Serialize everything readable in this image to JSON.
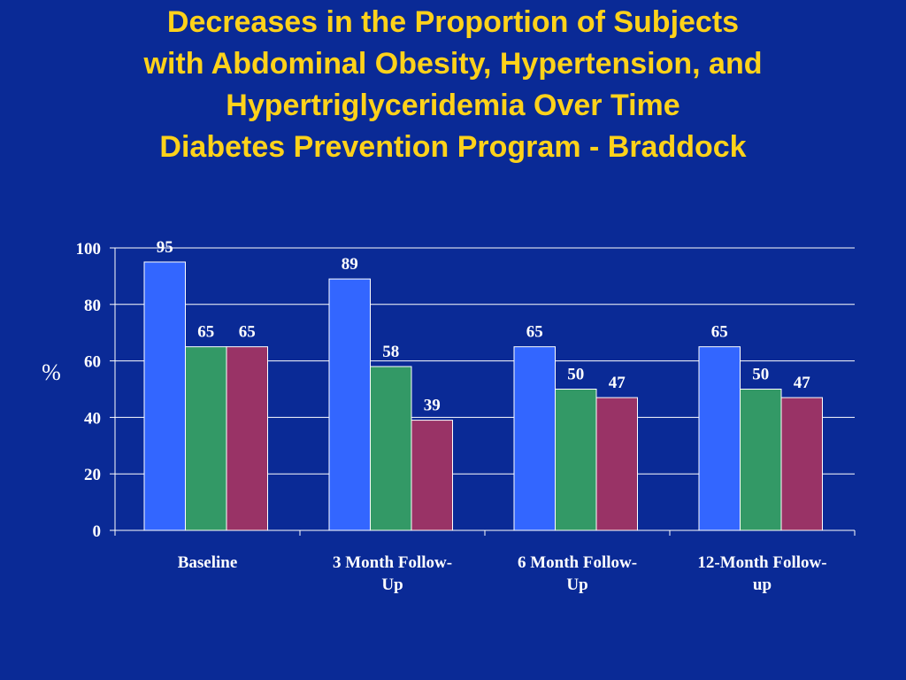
{
  "title_lines": [
    "Decreases in the Proportion of Subjects",
    "with Abdominal Obesity, Hypertension, and",
    "Hypertriglyceridemia Over Time",
    "Diabetes Prevention Program - Braddock"
  ],
  "colors": {
    "background": "#0a2a96",
    "title": "#ffd21a",
    "axis": "#ffffff",
    "grid": "#ffffff"
  },
  "chart_data": {
    "type": "bar",
    "ylabel": "%",
    "ylim": [
      0,
      100
    ],
    "yticks": [
      0,
      20,
      40,
      60,
      80,
      100
    ],
    "grid": true,
    "categories": [
      [
        "Baseline"
      ],
      [
        "3 Month Follow-",
        "Up"
      ],
      [
        "6 Month Follow-",
        "Up"
      ],
      [
        "12-Month Follow-",
        "up"
      ]
    ],
    "series": [
      {
        "values": [
          95,
          89,
          65,
          65
        ],
        "color": "#3366ff"
      },
      {
        "values": [
          65,
          58,
          50,
          50
        ],
        "color": "#339966"
      },
      {
        "values": [
          65,
          39,
          47,
          47
        ],
        "color": "#993366"
      }
    ]
  }
}
